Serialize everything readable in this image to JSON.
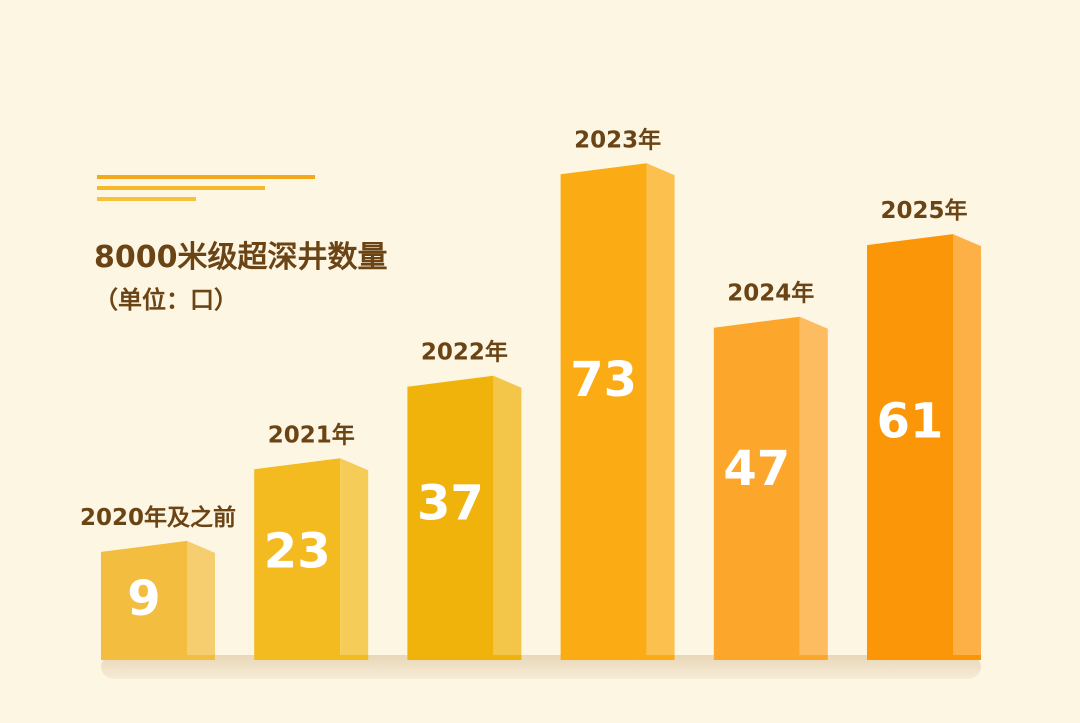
{
  "chart_data": {
    "type": "bar",
    "title": "8000米级超深井数量",
    "subtitle": "（单位：口）",
    "categories": [
      "2020年及之前",
      "2021年",
      "2022年",
      "2023年",
      "2024年",
      "2025年"
    ],
    "values": [
      9,
      23,
      37,
      73,
      47,
      61
    ],
    "data_labels": [
      "9",
      "23",
      "37",
      "73",
      "47",
      "61"
    ],
    "bar_colors": [
      "#f3bd3f",
      "#f3bb20",
      "#efb30c",
      "#fbab13",
      "#fca62b",
      "#fb9608"
    ],
    "grid": false,
    "legend": "none"
  },
  "colors": {
    "background": "#fdf6e3",
    "text": "#6b4416",
    "accent_lines": "#f4b41a"
  }
}
